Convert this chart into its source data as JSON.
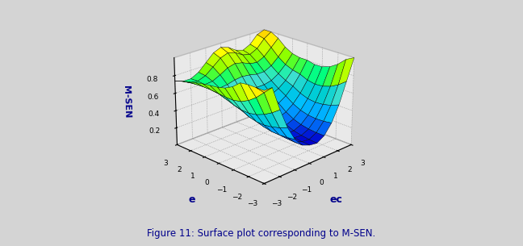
{
  "title": "Figure 11: Surface plot corresponding to M-SEN.",
  "xlabel": "ec",
  "ylabel": "e",
  "zlabel": "M-SEN",
  "xlim": [
    -3,
    3
  ],
  "ylim": [
    -3,
    3
  ],
  "zlim": [
    0,
    1.0
  ],
  "zticks": [
    0.2,
    0.4,
    0.6,
    0.8
  ],
  "elev": 22,
  "azim": 225,
  "figsize": [
    6.48,
    3.05
  ],
  "dpi": 100,
  "background_color": "#d4d4d4",
  "title_color": "#00008B",
  "axis_label_color": "#00008B"
}
